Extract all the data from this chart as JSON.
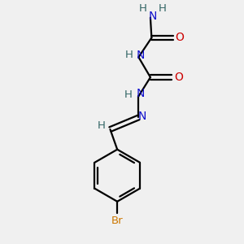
{
  "bg_color": "#f0f0f0",
  "atom_colors": {
    "C": "#000000",
    "N": "#1010cc",
    "O": "#cc0000",
    "Br": "#cc7700",
    "H": "#336666"
  },
  "bond_color": "#000000",
  "figsize": [
    3.0,
    3.0
  ],
  "dpi": 100
}
